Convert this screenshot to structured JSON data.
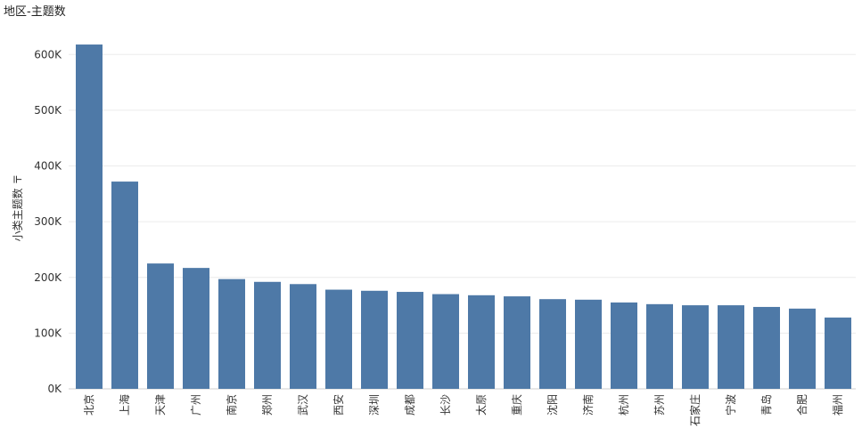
{
  "header": {
    "title": "地区-主题数"
  },
  "chart_data": {
    "type": "bar",
    "title": "地区-主题数",
    "xlabel": "",
    "ylabel": "小类主题数",
    "ylabel_suffix": "〒",
    "ylim": [
      0,
      650000
    ],
    "yticks": [
      0,
      100000,
      200000,
      300000,
      400000,
      500000,
      600000
    ],
    "ytick_labels": [
      "0K",
      "100K",
      "200K",
      "300K",
      "400K",
      "500K",
      "600K"
    ],
    "grid": true,
    "bar_color": "#4e79a7",
    "categories": [
      "北京",
      "上海",
      "天津",
      "广州",
      "南京",
      "郑州",
      "武汉",
      "西安",
      "深圳",
      "成都",
      "长沙",
      "太原",
      "重庆",
      "沈阳",
      "济南",
      "杭州",
      "苏州",
      "石家庄",
      "宁波",
      "青岛",
      "合肥",
      "福州"
    ],
    "values": [
      618000,
      372000,
      225000,
      217000,
      197000,
      192000,
      188000,
      178000,
      176000,
      174000,
      170000,
      168000,
      166000,
      161000,
      160000,
      155000,
      152000,
      150000,
      150000,
      147000,
      144000,
      128000
    ]
  }
}
